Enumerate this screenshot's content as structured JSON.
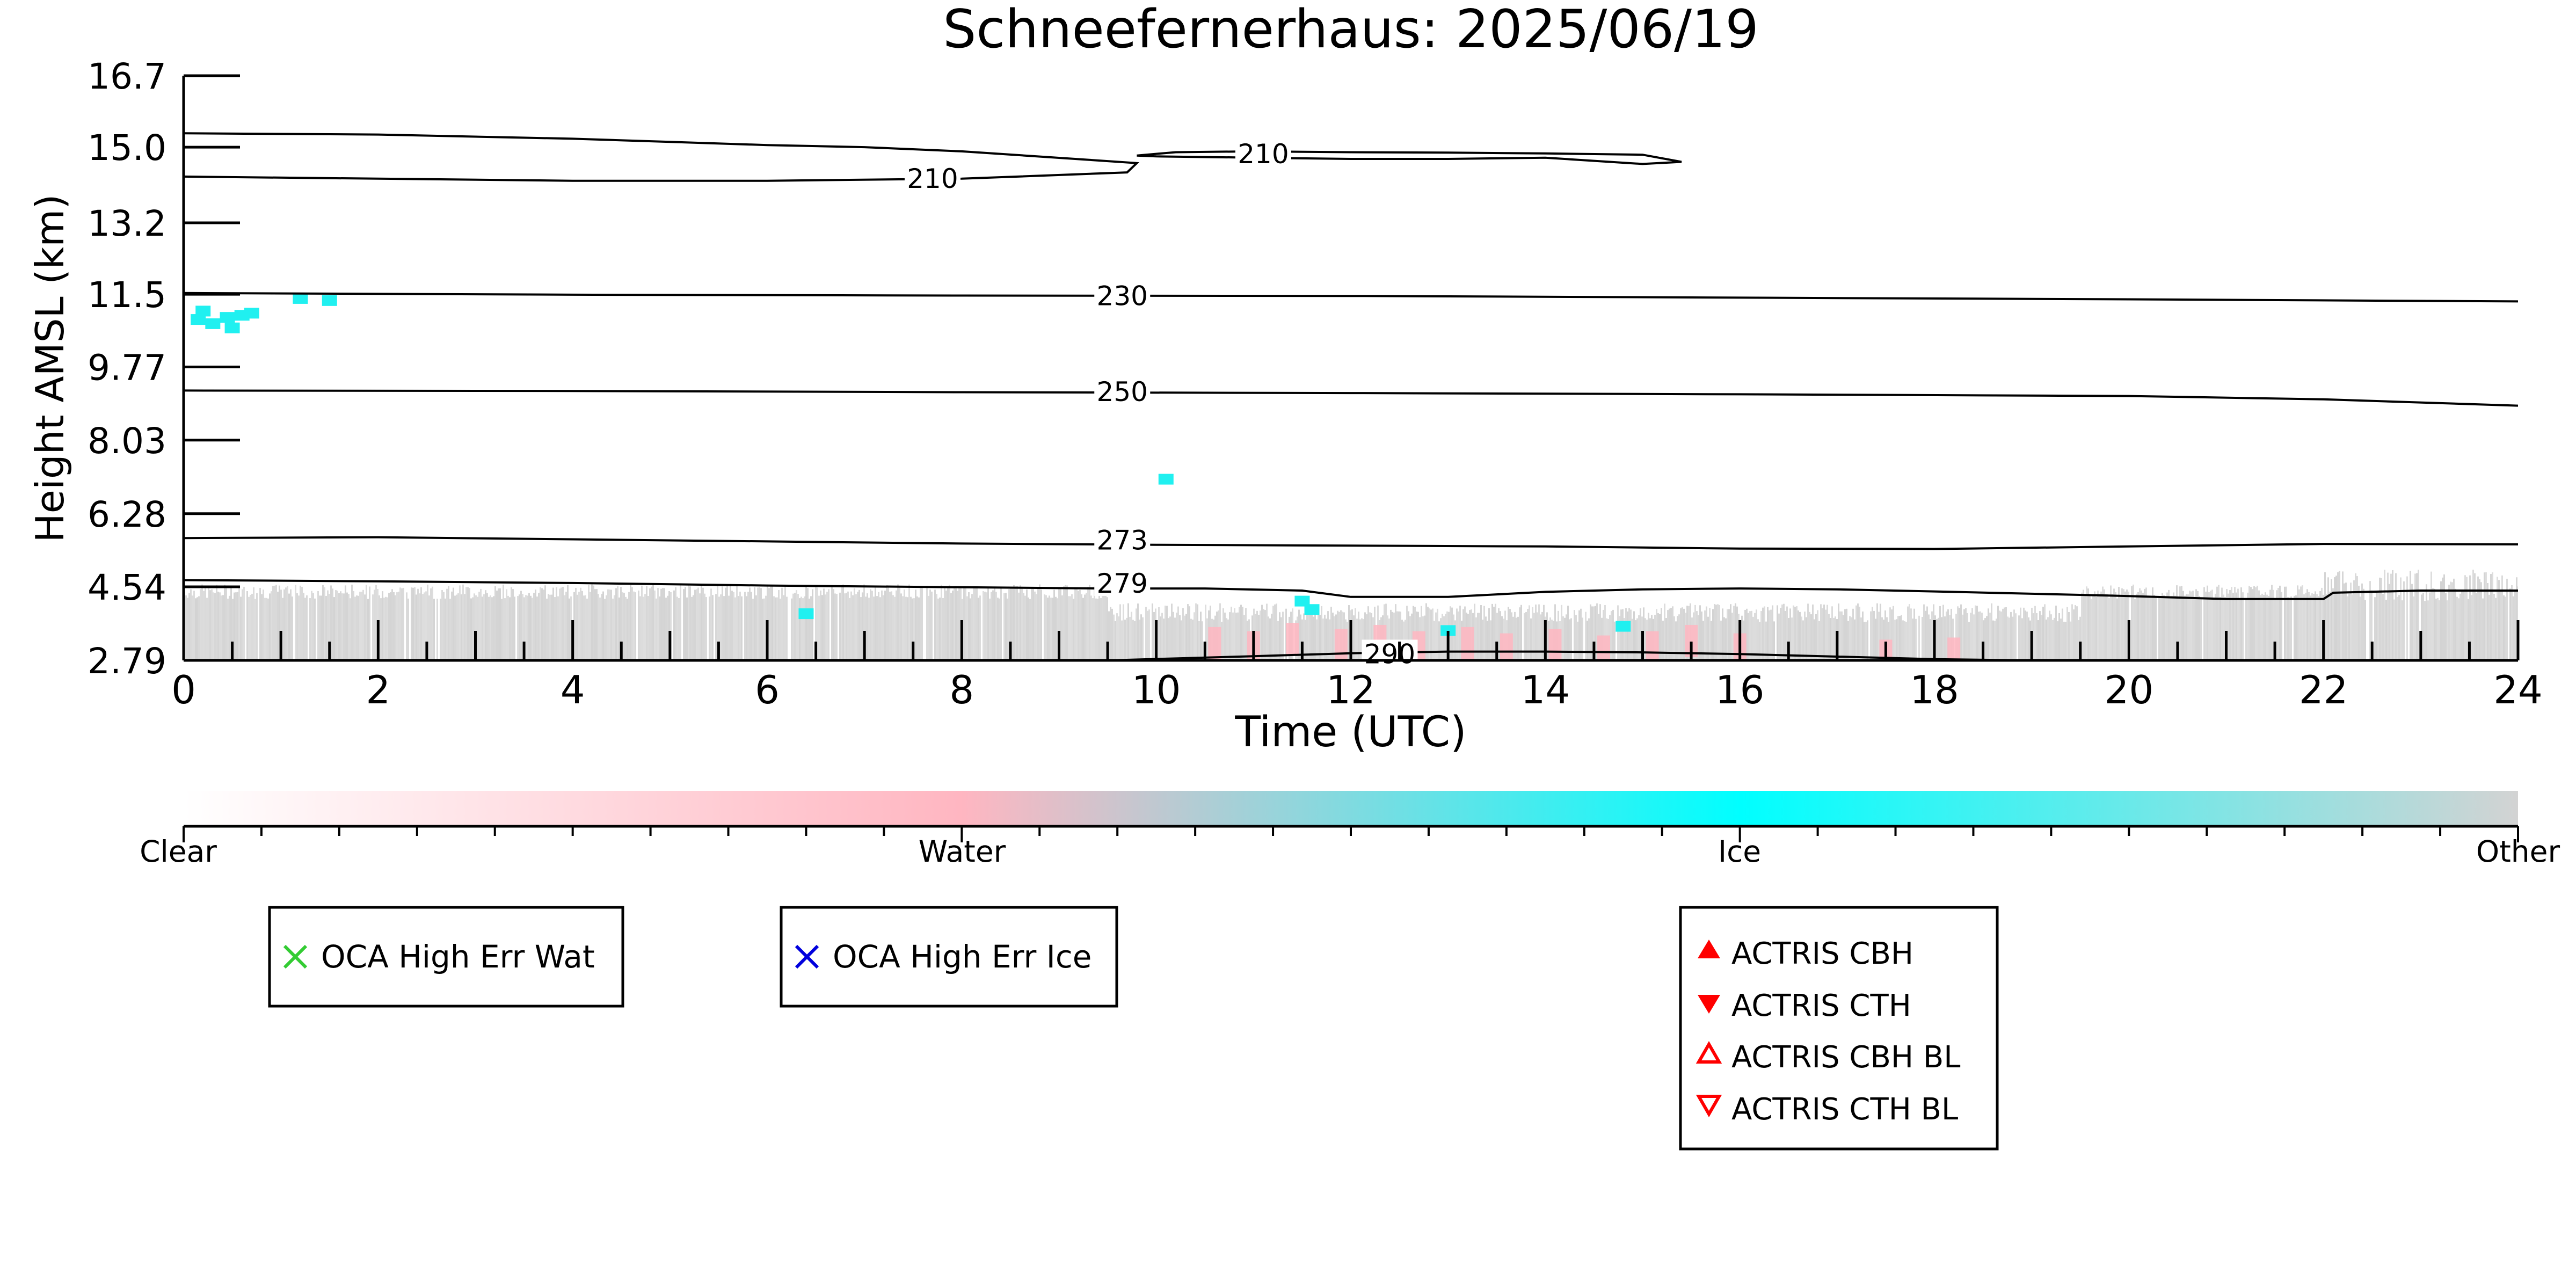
{
  "chart_data": {
    "type": "heatmap",
    "title": "Schneefernerhaus: 2025/06/19",
    "xlabel": "Time (UTC)",
    "ylabel": "Height AMSL (km)",
    "xlim": [
      0,
      24
    ],
    "ylim": [
      2.79,
      16.7
    ],
    "x_ticks": [
      "0",
      "2",
      "4",
      "6",
      "8",
      "10",
      "12",
      "14",
      "16",
      "18",
      "20",
      "22",
      "24"
    ],
    "y_ticks": [
      {
        "value": 2.79,
        "label": "2.79"
      },
      {
        "value": 4.54,
        "label": "4.54"
      },
      {
        "value": 6.28,
        "label": "6.28"
      },
      {
        "value": 8.03,
        "label": "8.03"
      },
      {
        "value": 9.77,
        "label": "9.77"
      },
      {
        "value": 11.5,
        "label": "11.5"
      },
      {
        "value": 13.2,
        "label": "13.2"
      },
      {
        "value": 15.0,
        "label": "15.0"
      },
      {
        "value": 16.7,
        "label": "16.7"
      }
    ],
    "colors": {
      "clear": "#ffffff",
      "water": "#ffb6c1",
      "ice": "#00ffff",
      "other": "#d3d3d3",
      "ice_mid": "#20f0f0",
      "oca_water": "#33cc33",
      "oca_ice": "#0000dd",
      "actris": "#ff0000"
    },
    "colorbar": {
      "labels": [
        "Clear",
        "Water",
        "Ice",
        "Other"
      ]
    },
    "temperature_contours": [
      {
        "label": "210",
        "label_at": [
          7.7,
          14.26
        ],
        "points": [
          [
            0,
            15.33
          ],
          [
            2,
            15.3
          ],
          [
            4,
            15.2
          ],
          [
            6,
            15.05
          ],
          [
            7,
            15.0
          ],
          [
            8,
            14.9
          ],
          [
            9.3,
            14.7
          ],
          [
            9.8,
            14.62
          ],
          [
            9.7,
            14.4
          ],
          [
            8,
            14.25
          ],
          [
            6,
            14.2
          ],
          [
            4,
            14.2
          ],
          [
            2,
            14.25
          ],
          [
            0,
            14.3
          ]
        ]
      },
      {
        "label": "210",
        "label_at": [
          11.1,
          14.85
        ],
        "points": [
          [
            9.8,
            14.8
          ],
          [
            10.2,
            14.88
          ],
          [
            11,
            14.9
          ],
          [
            12,
            14.88
          ],
          [
            13,
            14.87
          ],
          [
            14,
            14.85
          ],
          [
            15,
            14.82
          ],
          [
            15.4,
            14.65
          ],
          [
            15,
            14.6
          ],
          [
            14,
            14.75
          ],
          [
            13,
            14.72
          ],
          [
            12,
            14.72
          ],
          [
            11,
            14.75
          ],
          [
            10,
            14.78
          ],
          [
            9.8,
            14.8
          ]
        ]
      },
      {
        "label": "230",
        "label_at": [
          9.65,
          11.47
        ],
        "points": [
          [
            0,
            11.53
          ],
          [
            4,
            11.49
          ],
          [
            8,
            11.47
          ],
          [
            12,
            11.46
          ],
          [
            16,
            11.42
          ],
          [
            20,
            11.38
          ],
          [
            24,
            11.33
          ]
        ]
      },
      {
        "label": "250",
        "label_at": [
          9.65,
          9.19
        ],
        "points": [
          [
            0,
            9.21
          ],
          [
            4,
            9.2
          ],
          [
            8,
            9.17
          ],
          [
            12,
            9.15
          ],
          [
            16,
            9.12
          ],
          [
            20,
            9.08
          ],
          [
            22,
            9.0
          ],
          [
            24,
            8.85
          ]
        ]
      },
      {
        "label": "273",
        "label_at": [
          9.65,
          5.66
        ],
        "points": [
          [
            0,
            5.7
          ],
          [
            2,
            5.72
          ],
          [
            4,
            5.67
          ],
          [
            6,
            5.62
          ],
          [
            8,
            5.57
          ],
          [
            10,
            5.54
          ],
          [
            12,
            5.52
          ],
          [
            14,
            5.5
          ],
          [
            16,
            5.45
          ],
          [
            18,
            5.44
          ],
          [
            20,
            5.5
          ],
          [
            22,
            5.56
          ],
          [
            24,
            5.55
          ]
        ]
      },
      {
        "label": "279",
        "label_at": [
          9.65,
          4.63
        ],
        "points": [
          [
            0,
            4.7
          ],
          [
            2,
            4.67
          ],
          [
            4,
            4.63
          ],
          [
            6,
            4.57
          ],
          [
            8,
            4.53
          ],
          [
            9.5,
            4.5
          ],
          [
            10.5,
            4.5
          ],
          [
            11.5,
            4.45
          ],
          [
            12,
            4.3
          ],
          [
            13,
            4.3
          ],
          [
            14,
            4.42
          ],
          [
            15,
            4.48
          ],
          [
            16,
            4.5
          ],
          [
            17,
            4.48
          ],
          [
            18,
            4.43
          ],
          [
            20,
            4.32
          ],
          [
            21,
            4.25
          ],
          [
            22,
            4.25
          ],
          [
            22.1,
            4.4
          ],
          [
            23,
            4.45
          ],
          [
            24,
            4.45
          ]
        ]
      },
      {
        "label": "290",
        "label_at": [
          12.4,
          2.95
        ],
        "points": [
          [
            9.5,
            2.79
          ],
          [
            11,
            2.89
          ],
          [
            12,
            2.96
          ],
          [
            13,
            3.0
          ],
          [
            14,
            3.0
          ],
          [
            15,
            2.98
          ],
          [
            16,
            2.94
          ],
          [
            17,
            2.88
          ],
          [
            18,
            2.82
          ],
          [
            19,
            2.79
          ]
        ]
      }
    ],
    "ice_patches": [
      [
        0.15,
        10.9
      ],
      [
        0.3,
        10.8
      ],
      [
        0.45,
        10.95
      ],
      [
        0.6,
        11.0
      ],
      [
        0.2,
        11.1
      ],
      [
        0.5,
        10.7
      ],
      [
        0.7,
        11.05
      ],
      [
        1.2,
        11.4
      ],
      [
        1.5,
        11.35
      ],
      [
        10.1,
        7.1
      ],
      [
        11.5,
        4.2
      ],
      [
        11.6,
        4.0
      ],
      [
        6.4,
        3.9
      ],
      [
        13.0,
        3.5
      ],
      [
        14.8,
        3.6
      ]
    ],
    "water_patches": [
      [
        10.6,
        3.2
      ],
      [
        11.0,
        3.1
      ],
      [
        11.4,
        3.3
      ],
      [
        11.9,
        3.15
      ],
      [
        12.3,
        3.25
      ],
      [
        12.7,
        3.1
      ],
      [
        13.2,
        3.2
      ],
      [
        13.6,
        3.05
      ],
      [
        14.1,
        3.15
      ],
      [
        14.6,
        3.0
      ],
      [
        15.1,
        3.1
      ],
      [
        15.5,
        3.25
      ],
      [
        16.0,
        3.05
      ],
      [
        17.5,
        2.9
      ],
      [
        18.2,
        2.95
      ]
    ],
    "legend_oca": [
      {
        "label": "OCA High Err Wat",
        "marker": "x",
        "color": "#33cc33"
      },
      {
        "label": "OCA High Err Ice",
        "marker": "x",
        "color": "#0000dd"
      }
    ],
    "legend_actris": [
      {
        "label": "ACTRIS CBH",
        "marker": "triangle-up-filled"
      },
      {
        "label": "ACTRIS CTH",
        "marker": "triangle-down-filled"
      },
      {
        "label": "ACTRIS CBH BL",
        "marker": "triangle-up-open"
      },
      {
        "label": "ACTRIS CTH BL",
        "marker": "triangle-down-open"
      }
    ]
  }
}
